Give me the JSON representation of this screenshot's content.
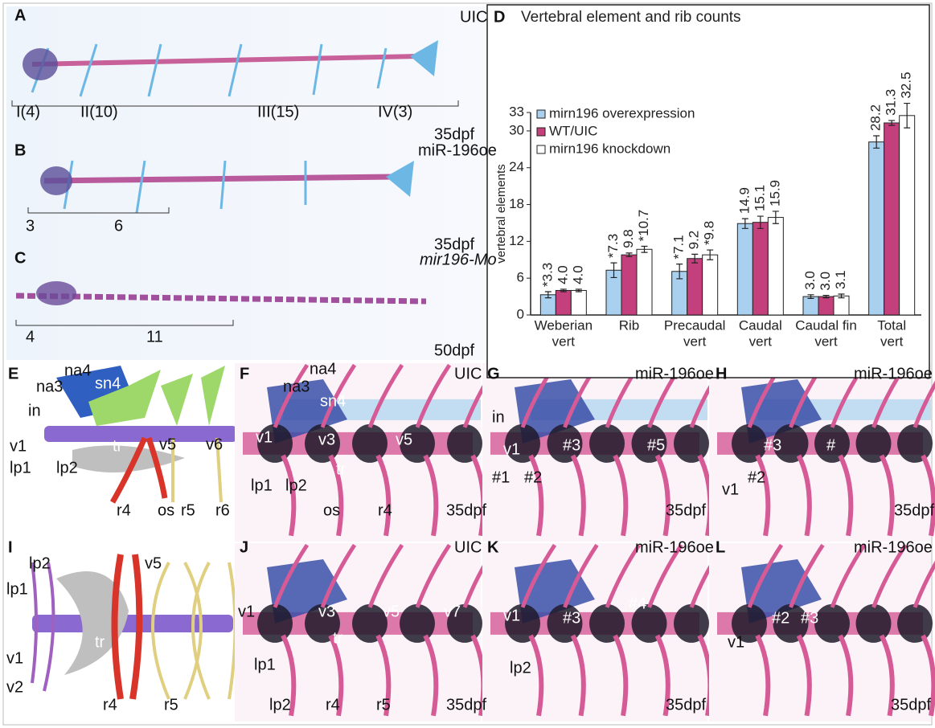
{
  "figure": {
    "panels": [
      {
        "letter": "A",
        "labels": [
          "UIC",
          "I(4)",
          "II(10)",
          "III(15)",
          "IV(3)",
          "35dpf"
        ]
      },
      {
        "letter": "B",
        "labels": [
          "miR-196oe",
          "3",
          "6",
          "35dpf"
        ]
      },
      {
        "letter": "C",
        "labels": [
          "mir196-Mo",
          "4",
          "11",
          "50dpf"
        ]
      },
      {
        "letter": "E",
        "labels": [
          "na4",
          "sn4",
          "na3",
          "in",
          "v1",
          "lp1",
          "lp2",
          "tr",
          "v5",
          "v6",
          "r4",
          "os",
          "r5",
          "r6"
        ]
      },
      {
        "letter": "F",
        "labels": [
          "na4",
          "na3",
          "sn4",
          "UIC",
          "v1",
          "v3",
          "v5",
          "lp1",
          "lp2",
          "tr",
          "os",
          "r4",
          "35dpf"
        ]
      },
      {
        "letter": "G",
        "labels": [
          "miR-196oe",
          "in",
          "v1",
          "#3",
          "#5",
          "#1",
          "#2",
          "35dpf"
        ]
      },
      {
        "letter": "H",
        "labels": [
          "miR-196oe",
          "#3",
          "#",
          "v1",
          "#2",
          "35dpf"
        ]
      },
      {
        "letter": "I",
        "labels": [
          "lp2",
          "v5",
          "lp1",
          "v1",
          "v2",
          "tr",
          "r4",
          "r5"
        ]
      },
      {
        "letter": "J",
        "labels": [
          "UIC",
          "v3",
          "v5",
          "v7",
          "v1",
          "lp1",
          "tr",
          "lp2",
          "r4",
          "r5",
          "35dpf"
        ]
      },
      {
        "letter": "K",
        "labels": [
          "miR-196oe",
          "v1",
          "#3",
          "#4",
          "lp2",
          "35dpf"
        ]
      },
      {
        "letter": "L",
        "labels": [
          "miR-196oe",
          "#2",
          "#3",
          "v1",
          "35dpf"
        ]
      }
    ]
  },
  "chart_data": {
    "type": "bar",
    "panel": "D",
    "title": "Vertebral element and rib counts",
    "y_label": "vertebral elements",
    "categories": [
      [
        "Weberian",
        "vert"
      ],
      [
        "Rib"
      ],
      [
        "Precaudal",
        "vert"
      ],
      [
        "Caudal",
        "vert"
      ],
      [
        "Caudal fin",
        "vert"
      ],
      [
        "Total",
        "vert"
      ]
    ],
    "series": [
      {
        "name": "mirn196 overexpression",
        "color": "#a9d1ef",
        "values": [
          3.3,
          7.3,
          7.1,
          14.9,
          3.0,
          28.2
        ],
        "errors": [
          0.5,
          1.2,
          1.2,
          0.8,
          0.3,
          1.0
        ],
        "value_labels": [
          "*3.3",
          "*7.3",
          "*7.1",
          "14.9",
          "3.0",
          "28.2"
        ]
      },
      {
        "name": "WT/UIC",
        "color": "#c4407c",
        "values": [
          4.0,
          9.8,
          9.2,
          15.1,
          3.0,
          31.3
        ],
        "errors": [
          0.2,
          0.3,
          0.7,
          1.0,
          0.2,
          0.4
        ],
        "value_labels": [
          "4.0",
          "9.8",
          "9.2",
          "15.1",
          "3.0",
          "31.3"
        ]
      },
      {
        "name": "mirn196 knockdown",
        "color": "#ffffff",
        "values": [
          4.0,
          10.7,
          9.8,
          15.9,
          3.1,
          32.5
        ],
        "errors": [
          0.2,
          0.5,
          0.8,
          1.0,
          0.3,
          2.0
        ],
        "value_labels": [
          "4.0",
          "*10.7",
          "*9.8",
          "15.9",
          "3.1",
          "32.5"
        ]
      }
    ],
    "ylim": [
      0,
      33
    ],
    "yticks": [
      0,
      6,
      12,
      18,
      24,
      30,
      33
    ],
    "grid": false,
    "legend": "upper left"
  }
}
